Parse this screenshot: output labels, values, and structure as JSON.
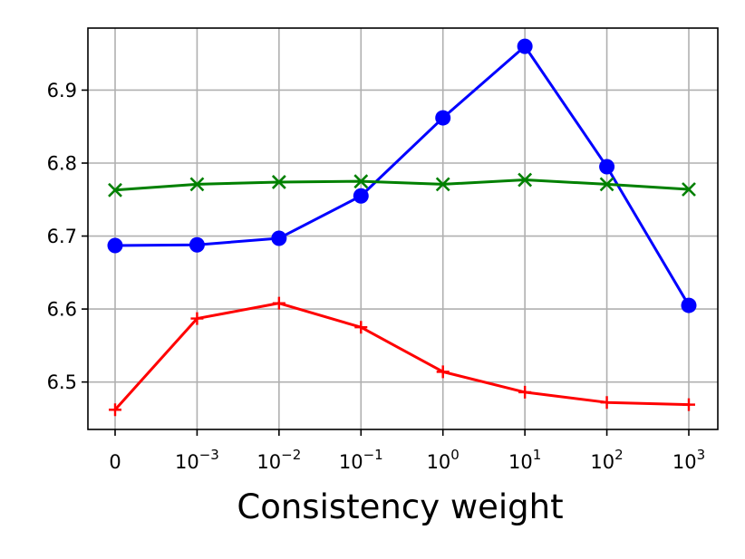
{
  "chart_data": {
    "type": "line",
    "title": "",
    "xlabel": "Consistency weight",
    "ylabel": "",
    "categories": [
      {
        "base": "0",
        "exp": ""
      },
      {
        "base": "10",
        "exp": "−3"
      },
      {
        "base": "10",
        "exp": "−2"
      },
      {
        "base": "10",
        "exp": "−1"
      },
      {
        "base": "10",
        "exp": "0"
      },
      {
        "base": "10",
        "exp": "1"
      },
      {
        "base": "10",
        "exp": "2"
      },
      {
        "base": "10",
        "exp": "3"
      }
    ],
    "ylim": [
      6.435,
      6.985
    ],
    "yticks": [
      6.5,
      6.6,
      6.7,
      6.8,
      6.9
    ],
    "grid": true,
    "series": [
      {
        "color": "#0000ff",
        "marker": "circle",
        "values": [
          6.687,
          6.688,
          6.697,
          6.755,
          6.862,
          6.96,
          6.795,
          6.605
        ]
      },
      {
        "color": "#008000",
        "marker": "x",
        "values": [
          6.763,
          6.771,
          6.774,
          6.775,
          6.771,
          6.777,
          6.771,
          6.764
        ]
      },
      {
        "color": "#ff0000",
        "marker": "plus",
        "values": [
          6.462,
          6.587,
          6.608,
          6.575,
          6.514,
          6.486,
          6.472,
          6.469
        ]
      }
    ]
  }
}
